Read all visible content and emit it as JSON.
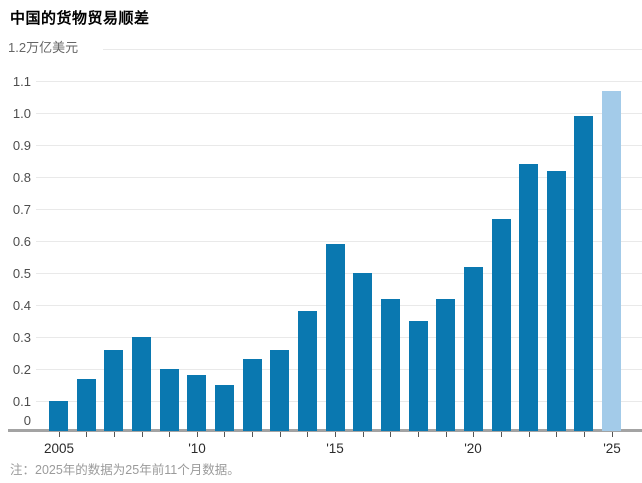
{
  "title": "中国的货物贸易顺差",
  "unit_label": "1.2万亿美元",
  "note": "注：2025年的数据为25年前11个月数据。",
  "colors": {
    "bar": "#0a78b0",
    "bar_highlight": "#a3cbe9",
    "gridline": "#e9e9e9",
    "axis_line": "#a3a3a3",
    "y_tick_label": "#4d4d4d",
    "x_tick_label": "#2b2b2b",
    "unit_label": "#666666",
    "note_text": "#9b9b9b",
    "title_text": "#000000"
  },
  "chart_data": {
    "type": "bar",
    "title": "中国的货物贸易顺差",
    "ylabel": "万亿美元",
    "ylim": [
      0,
      1.2
    ],
    "ytick_step": 0.1,
    "ytick_labels": [
      "0",
      "0.1",
      "0.2",
      "0.3",
      "0.4",
      "0.5",
      "0.6",
      "0.7",
      "0.8",
      "0.9",
      "1.0",
      "1.1",
      "1.2万亿美元"
    ],
    "grid": true,
    "legend": "none",
    "categories": [
      "2005",
      "2006",
      "2007",
      "2008",
      "2009",
      "2010",
      "2011",
      "2012",
      "2013",
      "2014",
      "2015",
      "2016",
      "2017",
      "2018",
      "2019",
      "2020",
      "2021",
      "2022",
      "2023",
      "2024",
      "2025"
    ],
    "values": [
      0.1,
      0.17,
      0.26,
      0.3,
      0.2,
      0.18,
      0.15,
      0.23,
      0.26,
      0.38,
      0.59,
      0.5,
      0.42,
      0.35,
      0.42,
      0.52,
      0.67,
      0.84,
      0.82,
      0.99,
      1.07
    ],
    "highlight_index": 20,
    "x_ticks": [
      {
        "index": 0,
        "label": "2005"
      },
      {
        "index": 5,
        "label": "'10"
      },
      {
        "index": 10,
        "label": "'15"
      },
      {
        "index": 15,
        "label": "'20"
      },
      {
        "index": 20,
        "label": "'25"
      }
    ],
    "note": "注：2025年的数据为25年前11个月数据。"
  }
}
